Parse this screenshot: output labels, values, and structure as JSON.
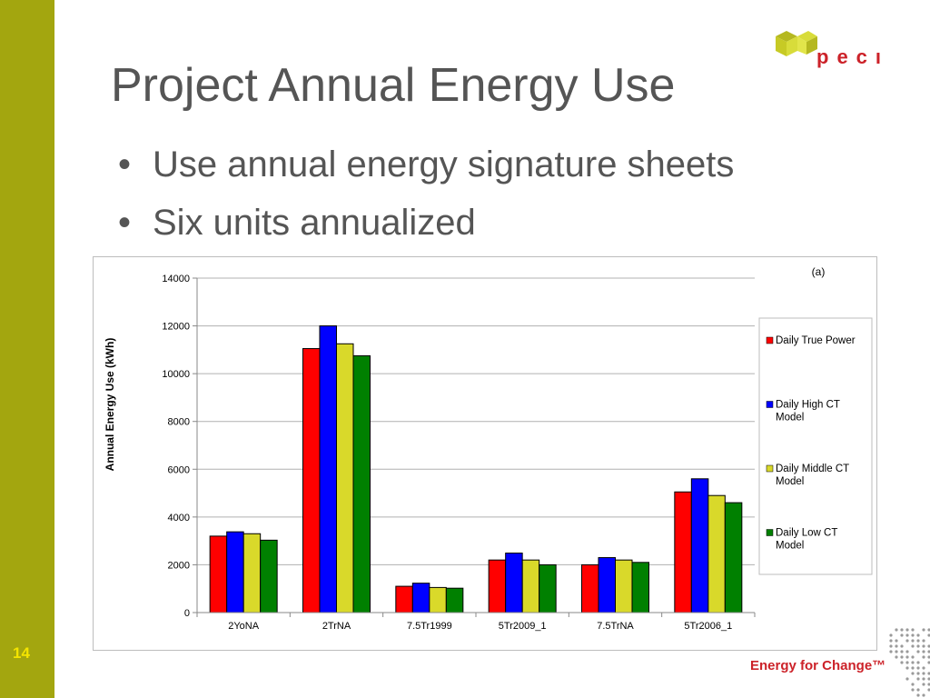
{
  "slide": {
    "title": "Project Annual Energy Use",
    "bullets": [
      "Use annual energy signature sheets",
      "Six units annualized"
    ],
    "slide_number": "14",
    "logo_text": "pecı",
    "footer_text": "Energy for Change™",
    "sidebar_color": "#a3a60f"
  },
  "chart_data": {
    "type": "bar",
    "annotation": "(a)",
    "ylabel": "Annual Energy Use (kWh)",
    "xlabel": "",
    "ylim": [
      0,
      14000
    ],
    "yticks": [
      0,
      2000,
      4000,
      6000,
      8000,
      10000,
      12000,
      14000
    ],
    "grid": true,
    "legend_position": "right",
    "categories": [
      "2YoNA",
      "2TrNA",
      "7.5Tr1999",
      "5Tr2009_1",
      "7.5TrNA",
      "5Tr2006_1"
    ],
    "series": [
      {
        "name": "Daily True Power",
        "color": "#ff0000",
        "values": [
          3200,
          11050,
          1100,
          2200,
          2000,
          5050
        ]
      },
      {
        "name": "Daily High CT Model",
        "color": "#0000ff",
        "values": [
          3380,
          12000,
          1230,
          2490,
          2300,
          5600
        ]
      },
      {
        "name": "Daily Middle CT Model",
        "color": "#d9d92a",
        "values": [
          3300,
          11250,
          1050,
          2200,
          2200,
          4900
        ]
      },
      {
        "name": "Daily Low CT Model",
        "color": "#008000",
        "values": [
          3030,
          10750,
          1020,
          2000,
          2100,
          4600
        ]
      }
    ]
  }
}
